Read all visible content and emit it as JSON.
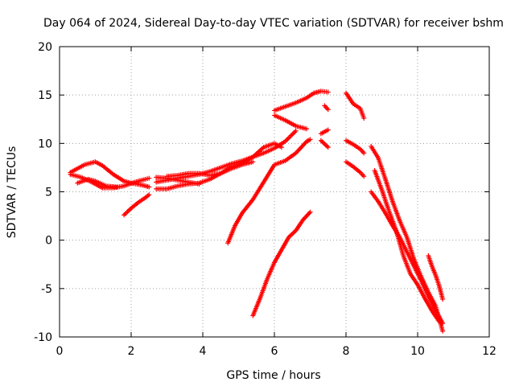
{
  "chart_data": {
    "type": "scatter",
    "title": "Day 064 of 2024, Sidereal Day-to-day VTEC variation (SDTVAR) for receiver bshm",
    "xlabel": "GPS time / hours",
    "ylabel": "SDTVAR / TECUs",
    "xlim": [
      0,
      12
    ],
    "ylim": [
      -10,
      20
    ],
    "xticks": [
      0,
      2,
      4,
      6,
      8,
      10,
      12
    ],
    "yticks": [
      -10,
      -5,
      0,
      5,
      10,
      15,
      20
    ],
    "grid": true,
    "legend": "none",
    "marker": "plus",
    "color": "#ff0000",
    "series": [
      {
        "x": [
          0.3,
          0.5,
          0.7,
          1.0,
          1.2,
          1.5,
          1.8,
          2.0,
          2.3,
          2.5
        ],
        "y": [
          7.0,
          7.4,
          7.8,
          8.1,
          7.7,
          6.8,
          6.1,
          5.9,
          5.7,
          5.5
        ]
      },
      {
        "x": [
          0.3,
          0.6,
          0.9,
          1.2,
          1.5,
          1.8,
          2.1,
          2.4,
          2.5
        ],
        "y": [
          6.8,
          6.5,
          6.0,
          5.4,
          5.4,
          5.6,
          6.0,
          6.3,
          6.4
        ]
      },
      {
        "x": [
          0.5,
          0.8,
          1.0,
          1.3,
          1.6
        ],
        "y": [
          5.9,
          6.3,
          6.1,
          5.6,
          5.5
        ]
      },
      {
        "x": [
          1.8,
          2.0,
          2.2,
          2.4,
          2.5
        ],
        "y": [
          2.6,
          3.3,
          3.9,
          4.4,
          4.7
        ]
      },
      {
        "x": [
          2.7,
          3.0,
          3.3,
          3.6,
          3.9,
          4.2,
          4.5,
          4.8,
          5.1,
          5.4,
          5.7,
          6.0,
          6.2
        ],
        "y": [
          5.3,
          5.3,
          5.6,
          5.8,
          5.9,
          6.3,
          6.9,
          7.6,
          8.0,
          8.6,
          9.6,
          10.0,
          9.6
        ]
      },
      {
        "x": [
          2.7,
          3.0,
          3.3,
          3.6,
          3.9,
          4.2,
          4.5,
          4.8,
          5.1,
          5.4,
          5.7,
          6.0,
          6.3,
          6.6
        ],
        "y": [
          6.0,
          6.2,
          6.4,
          6.6,
          6.8,
          7.1,
          7.5,
          7.9,
          8.2,
          8.6,
          9.0,
          9.5,
          10.2,
          11.3
        ]
      },
      {
        "x": [
          2.7,
          3.0,
          3.3,
          3.6,
          3.9
        ],
        "y": [
          6.5,
          6.4,
          6.2,
          6.0,
          5.8
        ]
      },
      {
        "x": [
          3.0,
          3.3,
          3.6,
          3.9,
          4.2,
          4.5,
          4.8,
          5.1,
          5.4
        ],
        "y": [
          6.6,
          6.7,
          6.9,
          6.9,
          6.7,
          6.9,
          7.4,
          7.8,
          8.1
        ]
      },
      {
        "x": [
          4.7,
          4.9,
          5.1,
          5.4,
          5.7,
          6.0,
          6.3,
          6.6,
          6.9,
          7.0
        ],
        "y": [
          -0.3,
          1.5,
          2.8,
          4.2,
          6.0,
          7.8,
          8.2,
          9.0,
          10.2,
          10.4
        ]
      },
      {
        "x": [
          5.4,
          5.6,
          5.8,
          6.0,
          6.2,
          6.4,
          6.6,
          6.8,
          7.0
        ],
        "y": [
          -7.8,
          -6.0,
          -4.0,
          -2.3,
          -1.0,
          0.3,
          1.0,
          2.1,
          2.9
        ]
      },
      {
        "x": [
          6.0,
          6.3,
          6.6,
          6.9,
          7.1,
          7.3,
          7.5
        ],
        "y": [
          13.4,
          13.8,
          14.2,
          14.7,
          15.2,
          15.4,
          15.3
        ]
      },
      {
        "x": [
          6.0,
          6.3,
          6.6,
          6.9
        ],
        "y": [
          12.9,
          12.4,
          11.8,
          11.5
        ]
      },
      {
        "x": [
          7.4,
          7.5
        ],
        "y": [
          13.9,
          13.5
        ]
      },
      {
        "x": [
          7.3,
          7.5
        ],
        "y": [
          11.0,
          11.4
        ]
      },
      {
        "x": [
          7.3,
          7.5
        ],
        "y": [
          10.3,
          9.6
        ]
      },
      {
        "x": [
          8.0,
          8.2,
          8.4,
          8.5
        ],
        "y": [
          15.2,
          14.1,
          13.6,
          12.6
        ]
      },
      {
        "x": [
          8.0,
          8.2,
          8.4,
          8.5
        ],
        "y": [
          10.3,
          9.9,
          9.4,
          9.0
        ]
      },
      {
        "x": [
          8.0,
          8.2,
          8.4,
          8.5
        ],
        "y": [
          8.1,
          7.6,
          7.0,
          6.6
        ]
      },
      {
        "x": [
          8.7,
          8.9,
          9.1,
          9.3,
          9.5,
          9.7,
          9.9,
          10.1,
          10.3,
          10.5,
          10.7
        ],
        "y": [
          9.7,
          8.5,
          6.3,
          4.0,
          2.0,
          0.3,
          -2.0,
          -3.8,
          -5.4,
          -6.8,
          -9.4
        ]
      },
      {
        "x": [
          8.7,
          8.9,
          9.1,
          9.3,
          9.5,
          9.7,
          9.9,
          10.1,
          10.3,
          10.5,
          10.7
        ],
        "y": [
          5.0,
          4.0,
          2.8,
          1.5,
          0.3,
          -1.2,
          -2.7,
          -4.2,
          -5.8,
          -7.2,
          -8.6
        ]
      },
      {
        "x": [
          8.8,
          9.0,
          9.2,
          9.4,
          9.6,
          9.8,
          10.0,
          10.2,
          10.4,
          10.6
        ],
        "y": [
          7.2,
          5.2,
          3.0,
          1.0,
          -1.6,
          -3.5,
          -4.6,
          -6.0,
          -7.3,
          -8.4
        ]
      },
      {
        "x": [
          10.3,
          10.4,
          10.5,
          10.6,
          10.7
        ],
        "y": [
          -1.6,
          -2.7,
          -3.6,
          -4.7,
          -6.1
        ]
      }
    ]
  }
}
